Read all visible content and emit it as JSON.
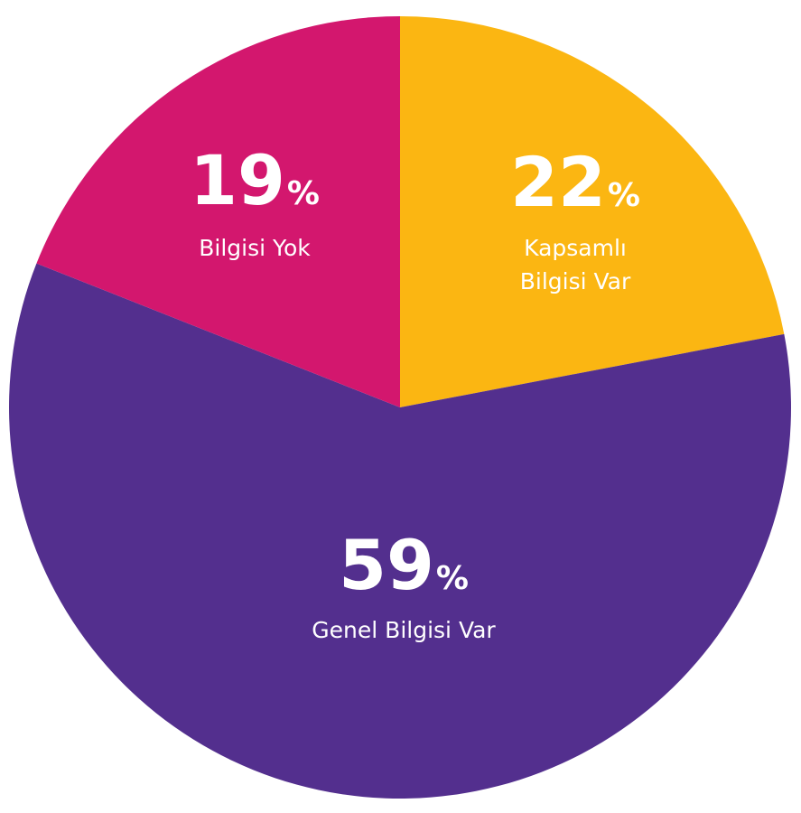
{
  "chart_data": {
    "type": "pie",
    "slices": [
      {
        "value": 22,
        "value_text": "22",
        "unit": "%",
        "label_lines": [
          "Kapsamlı",
          "Bilgisi Var"
        ],
        "color": "#FBB612"
      },
      {
        "value": 59,
        "value_text": "59",
        "unit": "%",
        "label_lines": [
          "Genel Bilgisi Var"
        ],
        "color": "#532F8E"
      },
      {
        "value": 19,
        "value_text": "19",
        "unit": "%",
        "label_lines": [
          "Bilgisi Yok"
        ],
        "color": "#D3176E"
      }
    ]
  }
}
